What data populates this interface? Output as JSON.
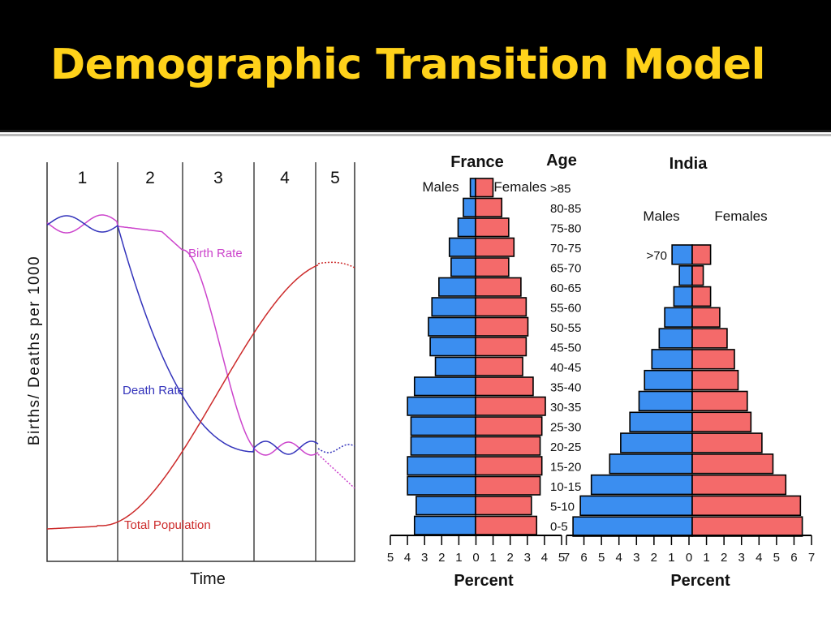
{
  "slide": {
    "title": "Demographic Transition Model"
  },
  "colors": {
    "title_text": "#ffd21a",
    "title_bg": "#000000",
    "birth_rate": "#cc44cc",
    "death_rate": "#3333bb",
    "total_population": "#cc2a2a",
    "males": "#3b8ef0",
    "females": "#f46a6a"
  },
  "chart_data": [
    {
      "type": "line",
      "xlabel": "Time",
      "ylabel": "Births/ Deaths per 1000",
      "stages": [
        "1",
        "2",
        "3",
        "4",
        "5"
      ],
      "grid": false,
      "series": [
        {
          "name": "Birth Rate",
          "color": "#cc44cc"
        },
        {
          "name": "Death Rate",
          "color": "#3333bb"
        },
        {
          "name": "Total Population",
          "color": "#cc2a2a"
        }
      ]
    },
    {
      "type": "bar",
      "title": "France",
      "age_label": "Age",
      "xlabel": "Percent",
      "legend": [
        "Males",
        "Females"
      ],
      "categories": [
        ">85",
        "80-85",
        "75-80",
        "70-75",
        "65-70",
        "60-65",
        "55-60",
        "50-55",
        "45-50",
        "40-45",
        "35-40",
        "30-35",
        "25-30",
        "20-25",
        "15-20",
        "10-15",
        "5-10",
        "0-5"
      ],
      "series": [
        {
          "name": "Males",
          "values": [
            0.3,
            0.7,
            1.0,
            1.5,
            1.4,
            2.1,
            2.5,
            2.7,
            2.6,
            2.3,
            3.5,
            3.9,
            3.7,
            3.7,
            3.9,
            3.9,
            3.4,
            3.5
          ]
        },
        {
          "name": "Females",
          "values": [
            1.0,
            1.5,
            1.9,
            2.2,
            1.9,
            2.6,
            2.9,
            3.0,
            2.9,
            2.7,
            3.3,
            4.0,
            3.8,
            3.7,
            3.8,
            3.7,
            3.2,
            3.5
          ]
        }
      ],
      "xticks": [
        "5",
        "4",
        "3",
        "2",
        "1",
        "0",
        "1",
        "2",
        "3",
        "4",
        "5"
      ],
      "xlim": [
        -5,
        5
      ]
    },
    {
      "type": "bar",
      "title": "India",
      "xlabel": "Percent",
      "legend": [
        "Males",
        "Females"
      ],
      "categories": [
        ">70",
        "",
        "",
        "",
        "",
        "",
        "",
        "",
        "",
        "",
        "",
        "",
        "",
        ""
      ],
      "series": [
        {
          "name": "Males",
          "values": [
            1.1,
            0.7,
            1.0,
            1.5,
            1.8,
            2.2,
            2.6,
            2.9,
            3.4,
            3.9,
            4.5,
            5.5,
            6.1,
            6.5
          ]
        },
        {
          "name": "Females",
          "values": [
            1.0,
            0.6,
            1.0,
            1.5,
            1.9,
            2.3,
            2.5,
            3.0,
            3.2,
            3.8,
            4.4,
            5.1,
            5.9,
            6.0
          ]
        }
      ],
      "xticks": [
        "7",
        "6",
        "5",
        "4",
        "3",
        "2",
        "1",
        "0",
        "1",
        "2",
        "3",
        "4",
        "5",
        "6",
        "7"
      ],
      "xlim": [
        -7,
        7
      ]
    }
  ]
}
